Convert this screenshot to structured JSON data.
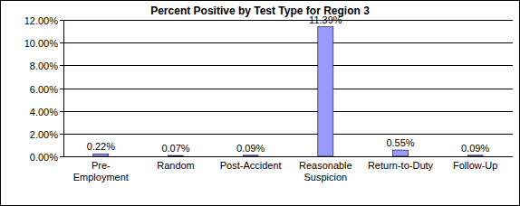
{
  "chart_data": {
    "type": "bar",
    "title": "Percent Positive by Test Type for Region 3",
    "categories": [
      "Pre-Employment",
      "Random",
      "Post-Accident",
      "Reasonable Suspicion",
      "Return-to-Duty",
      "Follow-Up"
    ],
    "values": [
      0.22,
      0.07,
      0.09,
      11.39,
      0.55,
      0.09
    ],
    "value_labels": [
      "0.22%",
      "0.07%",
      "0.09%",
      "11.39%",
      "0.55%",
      "0.09%"
    ],
    "color": "#9999ff",
    "ylim": [
      0,
      12
    ],
    "yticks": [
      {
        "value": 0,
        "label": "0.00%"
      },
      {
        "value": 2,
        "label": "2.00%"
      },
      {
        "value": 4,
        "label": "4.00%"
      },
      {
        "value": 6,
        "label": "6.00%"
      },
      {
        "value": 8,
        "label": "8.00%"
      },
      {
        "value": 10,
        "label": "10.00%"
      },
      {
        "value": 12,
        "label": "12.00%"
      }
    ],
    "grid": true,
    "data_labels": true
  }
}
